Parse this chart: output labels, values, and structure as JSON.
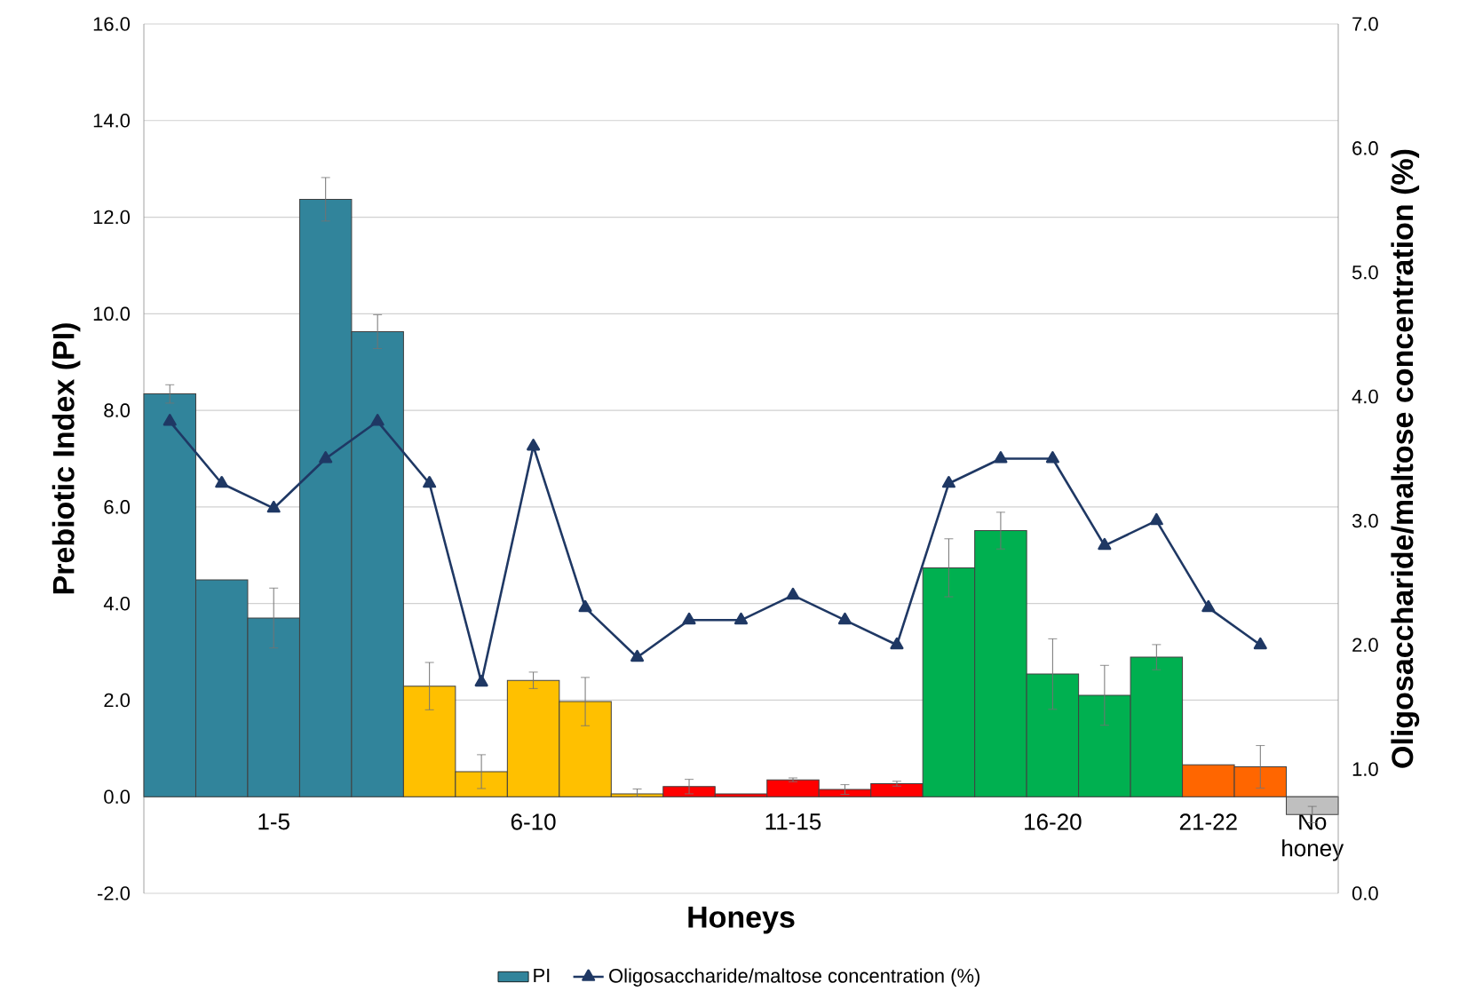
{
  "chart_data": {
    "type": "bar",
    "xlabel": "Honeys",
    "ylabel": "Prebiotic Index (PI)",
    "y2label": "Oligosaccharide/maltose concentration (%)",
    "categories": [
      null,
      null,
      "1-5",
      null,
      null,
      null,
      null,
      "6-10",
      null,
      null,
      null,
      null,
      "11-15",
      null,
      null,
      null,
      null,
      "16-20",
      null,
      null,
      "21-22",
      null,
      "No honey"
    ],
    "series": [
      {
        "name": "PI",
        "colors": [
          "#31849b",
          "#31849b",
          "#31849b",
          "#31849b",
          "#31849b",
          "#ffc000",
          "#ffc000",
          "#ffc000",
          "#ffc000",
          "#ffc000",
          "#ff0000",
          "#ff0000",
          "#ff0000",
          "#ff0000",
          "#ff0000",
          "#00b050",
          "#00b050",
          "#00b050",
          "#00b050",
          "#00b050",
          "#ff6600",
          "#ff6600",
          "#bfbfbf"
        ],
        "values": [
          8.34,
          4.49,
          3.7,
          12.37,
          9.63,
          2.29,
          0.52,
          2.41,
          1.97,
          0.06,
          0.21,
          0.06,
          0.35,
          0.15,
          0.27,
          4.74,
          5.51,
          2.54,
          2.1,
          2.89,
          0.66,
          0.62,
          -0.37
        ],
        "errors": [
          0.19,
          null,
          0.62,
          0.45,
          0.35,
          0.49,
          0.35,
          0.17,
          0.5,
          [
            0.0,
            0.16
          ],
          0.15,
          null,
          0.04,
          0.1,
          0.05,
          0.6,
          0.38,
          0.73,
          0.62,
          0.26,
          null,
          0.44,
          0.17
        ]
      },
      {
        "name": "Oligosaccharide/maltose concentration (%)",
        "type": "line",
        "axis": "y2",
        "color": "#1f3864",
        "marker": "triangle",
        "values": [
          3.8,
          3.3,
          3.1,
          3.5,
          3.8,
          3.3,
          1.7,
          3.6,
          2.3,
          1.9,
          2.2,
          2.2,
          2.4,
          2.2,
          2.0,
          3.3,
          3.5,
          3.5,
          2.8,
          3.0,
          2.3,
          2.0,
          null
        ]
      }
    ],
    "ylim": [
      -2,
      16
    ],
    "yticks": [
      {
        "value": -2,
        "label": "-2.0"
      },
      {
        "value": 0,
        "label": "0.0"
      },
      {
        "value": 2,
        "label": "2.0"
      },
      {
        "value": 4,
        "label": "4.0"
      },
      {
        "value": 6,
        "label": "6.0"
      },
      {
        "value": 8,
        "label": "8.0"
      },
      {
        "value": 10,
        "label": "10.0"
      },
      {
        "value": 12,
        "label": "12.0"
      },
      {
        "value": 14,
        "label": "14.0"
      },
      {
        "value": 16,
        "label": "16.0"
      }
    ],
    "y2lim": [
      0,
      7
    ],
    "y2ticks": [
      {
        "value": 0,
        "label": "0.0"
      },
      {
        "value": 1,
        "label": "1.0"
      },
      {
        "value": 2,
        "label": "2.0"
      },
      {
        "value": 3,
        "label": "3.0"
      },
      {
        "value": 4,
        "label": "4.0"
      },
      {
        "value": 5,
        "label": "5.0"
      },
      {
        "value": 6,
        "label": "6.0"
      },
      {
        "value": 7,
        "label": "7.0"
      }
    ],
    "grid": "y",
    "legend": "bottom"
  }
}
